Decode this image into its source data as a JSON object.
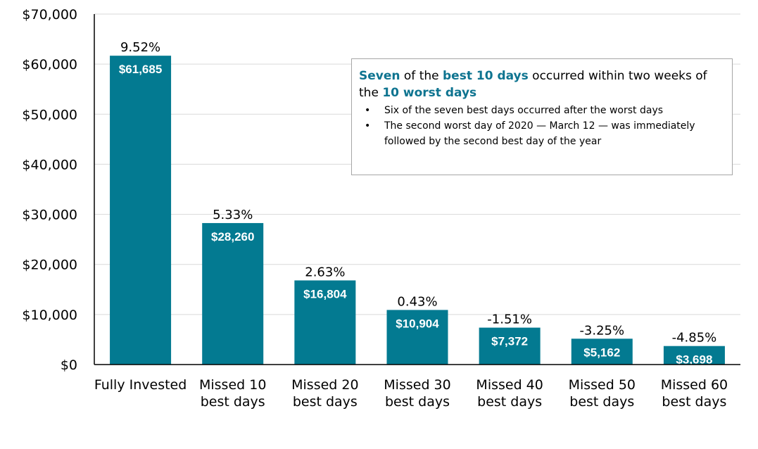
{
  "colors": {
    "bar": "#037a91",
    "axis": "#000000",
    "grid": "#d9d9d9",
    "accent": "#0e7490"
  },
  "chart_data": {
    "type": "bar",
    "categories": [
      [
        "Fully Invested",
        ""
      ],
      [
        "Missed 10",
        "best days"
      ],
      [
        "Missed 20",
        "best days"
      ],
      [
        "Missed 30",
        "best days"
      ],
      [
        "Missed 40",
        "best days"
      ],
      [
        "Missed 50",
        "best days"
      ],
      [
        "Missed 60",
        "best days"
      ]
    ],
    "values": [
      61685,
      28260,
      16804,
      10904,
      7372,
      5162,
      3698
    ],
    "value_labels": [
      "$61,685",
      "$28,260",
      "$16,804",
      "$10,904",
      "$7,372",
      "$5,162",
      "$3,698"
    ],
    "returns": [
      "9.52%",
      "5.33%",
      "2.63%",
      "0.43%",
      "-1.51%",
      "-3.25%",
      "-4.85%"
    ],
    "ylim": [
      0,
      70000
    ],
    "yticks": [
      0,
      10000,
      20000,
      30000,
      40000,
      50000,
      60000,
      70000
    ],
    "ytick_labels": [
      "$0",
      "$10,000",
      "$20,000",
      "$30,000",
      "$40,000",
      "$50,000",
      "$60,000",
      "$70,000"
    ],
    "grid": true
  },
  "callout": {
    "headline_1": "Seven",
    "headline_2": " of the ",
    "headline_3": "best 10 days",
    "headline_4": " occurred within two weeks of the ",
    "headline_5": "10 worst days",
    "bullets": [
      "Six of the seven best days occurred after the worst days",
      "The second worst day of 2020 — March 12 — was immediately followed by the second best day of the year"
    ],
    "bullet_symbol": "•"
  }
}
